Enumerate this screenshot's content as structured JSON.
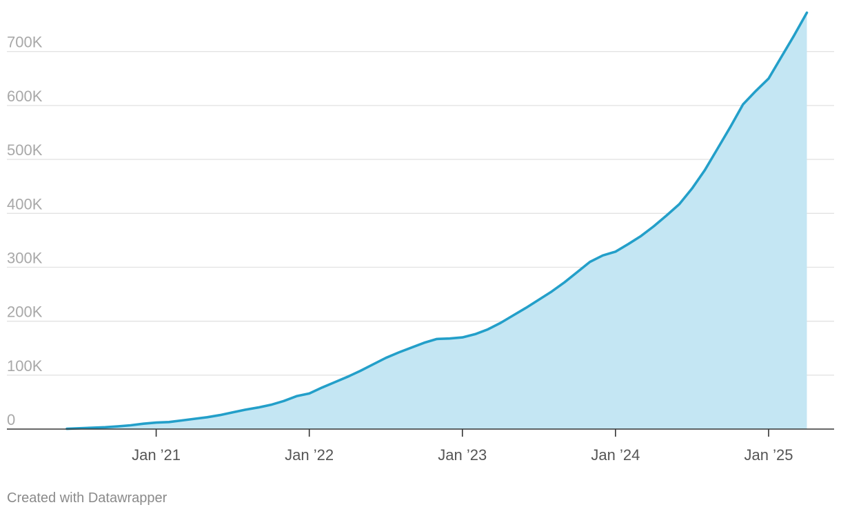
{
  "chart_data": {
    "type": "area",
    "xlabel": "",
    "ylabel": "",
    "ylim": [
      0,
      770000
    ],
    "xlim": [
      "2020-06-01",
      "2025-05-01"
    ],
    "grid": true,
    "legend": "none",
    "y_ticks": [
      {
        "value": 0,
        "label": "0"
      },
      {
        "value": 100000,
        "label": "100K"
      },
      {
        "value": 200000,
        "label": "200K"
      },
      {
        "value": 300000,
        "label": "300K"
      },
      {
        "value": 400000,
        "label": "400K"
      },
      {
        "value": 500000,
        "label": "500K"
      },
      {
        "value": 600000,
        "label": "600K"
      },
      {
        "value": 700000,
        "label": "700K"
      }
    ],
    "x_ticks": [
      {
        "value": "2021-01",
        "label": "Jan ’21"
      },
      {
        "value": "2022-01",
        "label": "Jan ’22"
      },
      {
        "value": "2023-01",
        "label": "Jan ’23"
      },
      {
        "value": "2024-01",
        "label": "Jan ’24"
      },
      {
        "value": "2025-01",
        "label": "Jan ’25"
      }
    ],
    "series": [
      {
        "x": [
          "2020-06",
          "2020-07",
          "2020-08",
          "2020-09",
          "2020-10",
          "2020-11",
          "2020-12",
          "2021-01",
          "2021-02",
          "2021-03",
          "2021-04",
          "2021-05",
          "2021-06",
          "2021-07",
          "2021-08",
          "2021-09",
          "2021-10",
          "2021-11",
          "2021-12",
          "2022-01",
          "2022-02",
          "2022-03",
          "2022-04",
          "2022-05",
          "2022-06",
          "2022-07",
          "2022-08",
          "2022-09",
          "2022-10",
          "2022-11",
          "2022-12",
          "2023-01",
          "2023-02",
          "2023-03",
          "2023-04",
          "2023-05",
          "2023-06",
          "2023-07",
          "2023-08",
          "2023-09",
          "2023-10",
          "2023-11",
          "2023-12",
          "2024-01",
          "2024-02",
          "2024-03",
          "2024-04",
          "2024-05",
          "2024-06",
          "2024-07",
          "2024-08",
          "2024-09",
          "2024-10",
          "2024-11",
          "2024-12",
          "2025-01",
          "2025-02",
          "2025-03",
          "2025-04"
        ],
        "values": [
          500,
          1500,
          2500,
          3500,
          5000,
          7000,
          10000,
          12000,
          13000,
          16000,
          19000,
          22000,
          26000,
          31000,
          36000,
          40000,
          45000,
          52000,
          61000,
          66000,
          77000,
          87000,
          97000,
          108000,
          120000,
          132000,
          142000,
          151000,
          160000,
          167000,
          168000,
          170000,
          176000,
          185000,
          197000,
          211000,
          225000,
          240000,
          255000,
          272000,
          291000,
          310000,
          322000,
          329000,
          343000,
          358000,
          376000,
          396000,
          417000,
          446000,
          480000,
          520000,
          560000,
          602000,
          627000,
          650000,
          690000,
          730000,
          772000
        ],
        "color": "#239fc9",
        "fill": "#c4e6f3"
      }
    ]
  },
  "credit": "Created with Datawrapper"
}
